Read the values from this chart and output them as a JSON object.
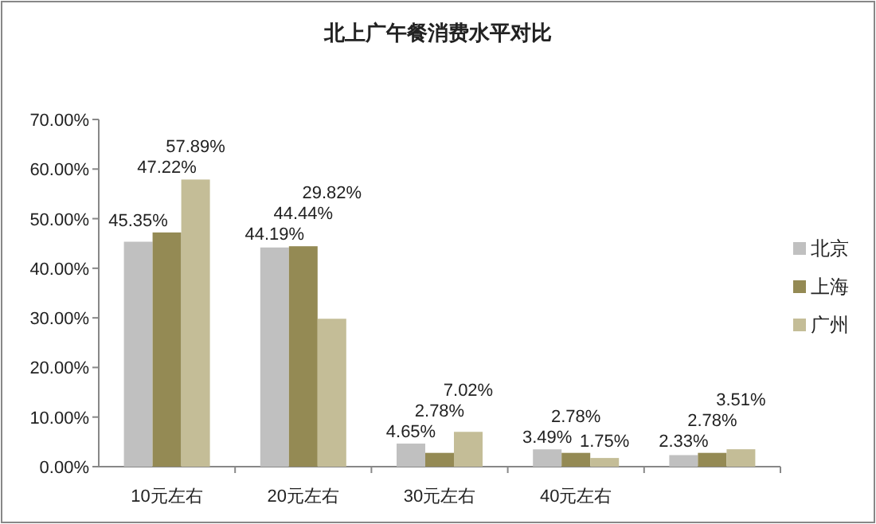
{
  "chart_data": {
    "type": "bar",
    "title": "北上广午餐消费水平对比",
    "categories": [
      "10元左右",
      "20元左右",
      "30元左右",
      "40元左右",
      null
    ],
    "series": [
      {
        "name": "北京",
        "color": "#c0c0c0",
        "values": [
          45.35,
          44.19,
          4.65,
          3.49,
          2.33
        ]
      },
      {
        "name": "上海",
        "color": "#948a54",
        "values": [
          47.22,
          44.44,
          2.78,
          2.78,
          2.78
        ]
      },
      {
        "name": "广州",
        "color": "#c4bd97",
        "values": [
          57.89,
          29.82,
          7.02,
          1.75,
          3.51
        ]
      }
    ],
    "ylim": [
      0,
      70
    ],
    "yticks": [
      {
        "value": 0,
        "label": "0.00%"
      },
      {
        "value": 10,
        "label": "10.00%"
      },
      {
        "value": 20,
        "label": "20.00%"
      },
      {
        "value": 30,
        "label": "30.00%"
      },
      {
        "value": 40,
        "label": "40.00%"
      },
      {
        "value": 50,
        "label": "50.00%"
      },
      {
        "value": 60,
        "label": "60.00%"
      },
      {
        "value": 70,
        "label": "70.00%"
      }
    ],
    "value_labels": [
      [
        "45.35%",
        "44.19%",
        "4.65%",
        "3.49%",
        "2.33%"
      ],
      [
        "47.22%",
        "44.44%",
        "2.78%",
        "2.78%",
        "2.78%"
      ],
      [
        "57.89%",
        "29.82%",
        "7.02%",
        "1.75%",
        "3.51%"
      ]
    ],
    "grid": false,
    "legend": "right"
  }
}
